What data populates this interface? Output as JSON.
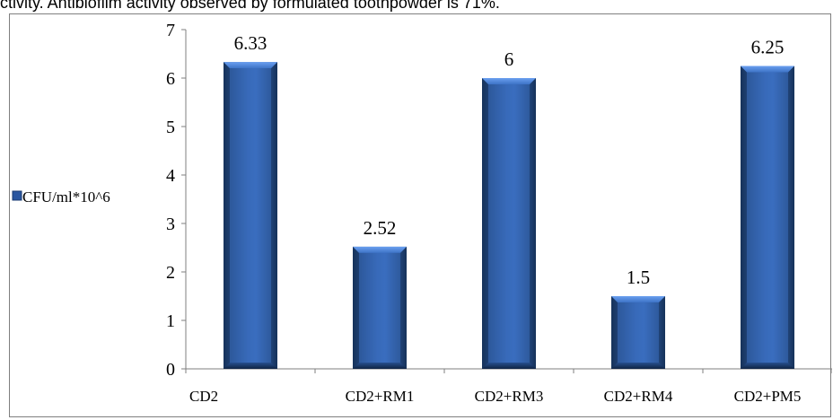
{
  "header": {
    "cut_text": "ctivity. Antibiofilm activity observed by formulated toothpowder is 71%."
  },
  "colors": {
    "bar_dark": "#16325a",
    "bar_mid": "#3566b4",
    "bar_light": "#5b8fe0",
    "axis": "#7f7f7f"
  },
  "chart_data": {
    "type": "bar",
    "categories": [
      "CD2",
      "CD2+RM1",
      "CD2+RM3",
      "CD2+RM4",
      "CD2+PM5"
    ],
    "series": [
      {
        "name": "CFU/ml*10^6",
        "values": [
          6.33,
          2.52,
          6,
          1.5,
          6.25
        ]
      }
    ],
    "data_labels": [
      "6.33",
      "2.52",
      "6",
      "1.5",
      "6.25"
    ],
    "ylim": [
      0,
      7
    ],
    "yticks": [
      "0",
      "1",
      "2",
      "3",
      "4",
      "5",
      "6",
      "7"
    ],
    "legend_position": "left",
    "grid": false,
    "xlabel": "",
    "ylabel": ""
  }
}
